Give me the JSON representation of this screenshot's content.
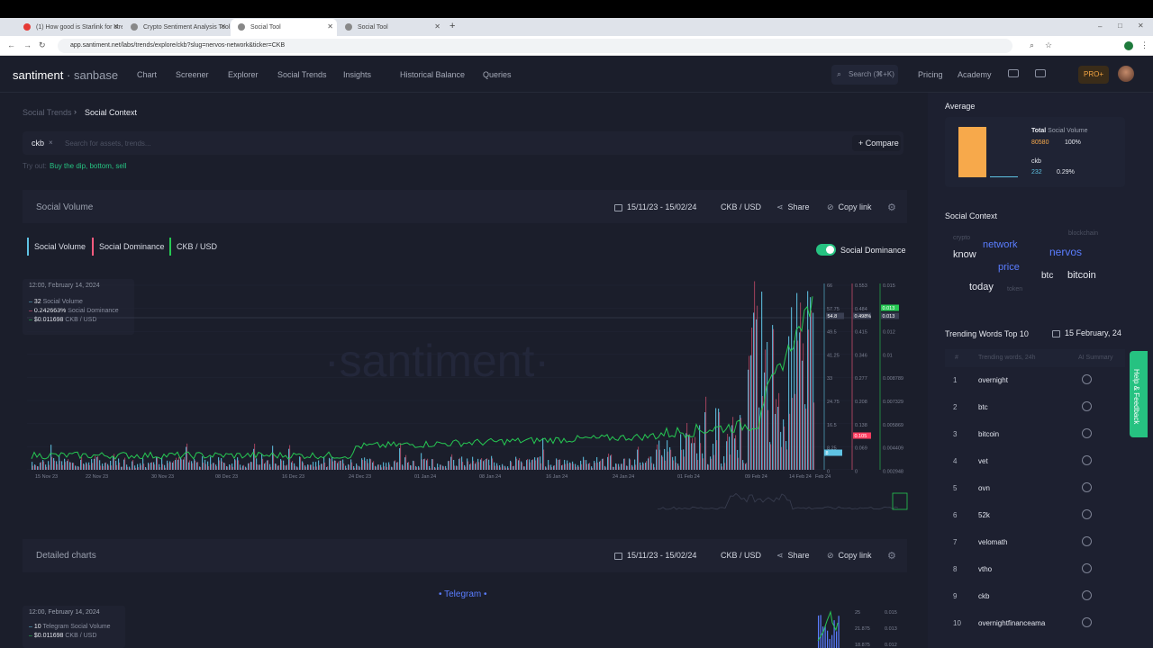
{
  "browser": {
    "tabs": [
      {
        "label": "(1) How good is Starlink for stre",
        "active": false,
        "color": "#e53935"
      },
      {
        "label": "Crypto Sentiment Analysis Tool",
        "active": false,
        "color": "#888888"
      },
      {
        "label": "Social Tool",
        "active": true,
        "color": "#888888"
      },
      {
        "label": "Social Tool",
        "active": false,
        "color": "#888888"
      }
    ],
    "url": "app.santiment.net/labs/trends/explore/ckb?slug=nervos-network&ticker=CKB"
  },
  "header": {
    "logo_main": "santiment",
    "logo_sep": "·",
    "logo_sub": "sanbase",
    "nav": [
      "Chart",
      "Screener",
      "Explorer",
      "Social Trends",
      "Insights",
      "Historical Balance",
      "Queries"
    ],
    "search_placeholder": "Search (⌘+K)",
    "right_links": [
      "Pricing",
      "Academy"
    ],
    "pro_label": "PRO+"
  },
  "breadcrumb": {
    "parent": "Social Trends",
    "current": "Social Context"
  },
  "search": {
    "chip": "ckb",
    "placeholder": "Search for assets, trends...",
    "compare": "+ Compare"
  },
  "tryout": {
    "label": "Try out:",
    "value": "Buy the dip, bottom, sell"
  },
  "social_volume_panel": {
    "title": "Social Volume",
    "date_range": "15/11/23 - 15/02/24",
    "pair": "CKB / USD",
    "share": "Share",
    "copy_link": "Copy link",
    "toggle_label": "Social Dominance",
    "legend": [
      {
        "label": "Social Volume",
        "color": "#5fc3e4"
      },
      {
        "label": "Social Dominance",
        "color": "#ff5b7f"
      },
      {
        "label": "CKB / USD",
        "color": "#26c953"
      }
    ],
    "tooltip": {
      "date": "12:00, February 14, 2024",
      "rows": [
        {
          "value": "32",
          "label": "Social Volume",
          "color": "#5fc3e4"
        },
        {
          "value": "0.242663%",
          "label": "Social Dominance",
          "color": "#ff5b7f"
        },
        {
          "value": "$0.011698",
          "label": "CKB / USD",
          "color": "#26c953"
        }
      ]
    },
    "watermark": "·santiment·",
    "axis_volume": [
      "66",
      "57.75",
      "49.5",
      "41.25",
      "33",
      "24.75",
      "16.5",
      "8.25",
      "0"
    ],
    "axis_dominance": [
      "0.553",
      "0.484",
      "0.415",
      "0.346",
      "0.277",
      "0.208",
      "0.138",
      "0.069",
      "0"
    ],
    "axis_price": [
      "0.015",
      "0.013",
      "0.012",
      "0.01",
      "0.008789",
      "0.007329",
      "0.005869",
      "0.004409",
      "0.002948"
    ],
    "cursor_volume": "54.8",
    "cursor_dominance": "0.498%",
    "cursor_price": "0.013",
    "current_price": "0.013",
    "current_dominance": "0.105",
    "current_volume": "8",
    "x_labels": [
      "15 Nov 23",
      "22 Nov 23",
      "30 Nov 23",
      "08 Dec 23",
      "16 Dec 23",
      "24 Dec 23",
      "01 Jan 24",
      "08 Jan 24",
      "16 Jan 24",
      "24 Jan 24",
      "01 Feb 24",
      "09 Feb 24",
      "14 Feb 24",
      "Feb 24"
    ]
  },
  "detailed_panel": {
    "title": "Detailed charts",
    "date_range": "15/11/23 - 15/02/24",
    "pair": "CKB / USD",
    "share": "Share",
    "copy_link": "Copy link",
    "channel": "Telegram",
    "tooltip": {
      "date": "12:00, February 14, 2024",
      "rows": [
        {
          "value": "10",
          "label": "Telegram Social Volume",
          "color": "#5fc3e4"
        },
        {
          "value": "$0.011698",
          "label": "CKB / USD",
          "color": "#26c953"
        }
      ]
    },
    "axis_volume": [
      "25",
      "21.875",
      "18.875"
    ],
    "axis_price": [
      "0.015",
      "0.013",
      "0.012"
    ]
  },
  "sidebar": {
    "average_title": "Average",
    "total_label": "Total",
    "total_suffix": "Social Volume",
    "total_value": "80580",
    "total_pct": "100%",
    "ckb_label": "ckb",
    "ckb_value": "232",
    "ckb_pct": "0.29%",
    "context_title": "Social Context",
    "word_cloud": [
      {
        "word": "crypto",
        "color": "#4c5162",
        "size": 7
      },
      {
        "word": "network",
        "color": "#5a7dff",
        "size": 11
      },
      {
        "word": "blockchain",
        "color": "#4c5162",
        "size": 7
      },
      {
        "word": "know",
        "color": "#e6e8ef",
        "size": 11
      },
      {
        "word": "nervos",
        "color": "#5a7dff",
        "size": 12
      },
      {
        "word": "price",
        "color": "#5a7dff",
        "size": 11
      },
      {
        "word": "btc",
        "color": "#e6e8ef",
        "size": 10
      },
      {
        "word": "bitcoin",
        "color": "#e6e8ef",
        "size": 11
      },
      {
        "word": "today",
        "color": "#e6e8ef",
        "size": 11
      },
      {
        "word": "token",
        "color": "#4c5162",
        "size": 7
      }
    ],
    "trending_title": "Trending Words Top 10",
    "trending_date": "15 February, 24",
    "trending_head": {
      "num": "#",
      "word": "Trending words, 24h",
      "ai": "AI Summary"
    },
    "trending": [
      "overnight",
      "btc",
      "bitcoin",
      "vet",
      "ovn",
      "52k",
      "velomath",
      "vtho",
      "ckb",
      "overnightfinanceama"
    ],
    "help": "Help & Feedback"
  }
}
